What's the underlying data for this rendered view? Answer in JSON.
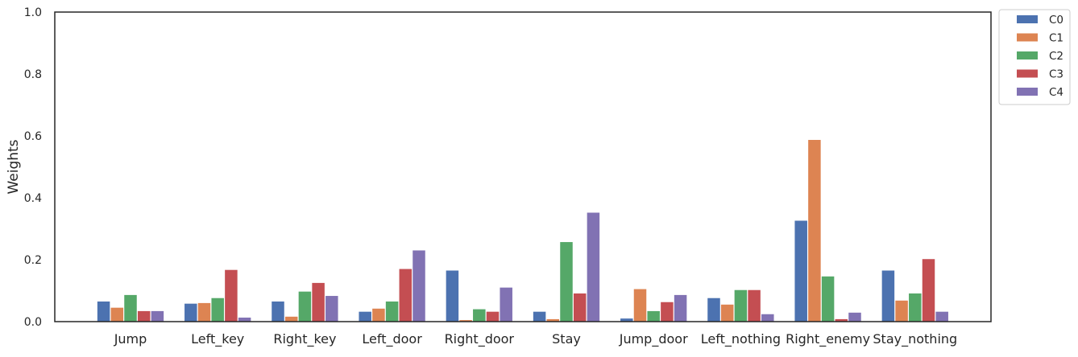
{
  "chart_data": {
    "type": "bar",
    "title": "",
    "xlabel": "",
    "ylabel": "Weights",
    "ylim": [
      0,
      1.0
    ],
    "yticks": [
      "0.0",
      "0.2",
      "0.4",
      "0.6",
      "0.8",
      "1.0"
    ],
    "ytick_values": [
      0.0,
      0.2,
      0.4,
      0.6,
      0.8,
      1.0
    ],
    "grid": false,
    "legend_position": "outside top-right",
    "categories": [
      "Jump",
      "Left_key",
      "Right_key",
      "Left_door",
      "Right_door",
      "Stay",
      "Jump_door",
      "Left_nothing",
      "Right_enemy",
      "Stay_nothing"
    ],
    "series": [
      {
        "name": "C0",
        "color": "#4c72b0",
        "values": [
          0.065,
          0.058,
          0.065,
          0.032,
          0.165,
          0.032,
          0.01,
          0.076,
          0.326,
          0.165
        ]
      },
      {
        "name": "C1",
        "color": "#dd8452",
        "values": [
          0.045,
          0.06,
          0.016,
          0.042,
          0.005,
          0.008,
          0.105,
          0.055,
          0.587,
          0.068
        ]
      },
      {
        "name": "C2",
        "color": "#55a868",
        "values": [
          0.086,
          0.076,
          0.097,
          0.065,
          0.04,
          0.257,
          0.034,
          0.102,
          0.146,
          0.091
        ]
      },
      {
        "name": "C3",
        "color": "#c44e52",
        "values": [
          0.034,
          0.167,
          0.125,
          0.17,
          0.032,
          0.091,
          0.063,
          0.102,
          0.008,
          0.202
        ]
      },
      {
        "name": "C4",
        "color": "#8172b3",
        "values": [
          0.034,
          0.013,
          0.083,
          0.23,
          0.11,
          0.352,
          0.086,
          0.024,
          0.029,
          0.032
        ]
      }
    ]
  }
}
